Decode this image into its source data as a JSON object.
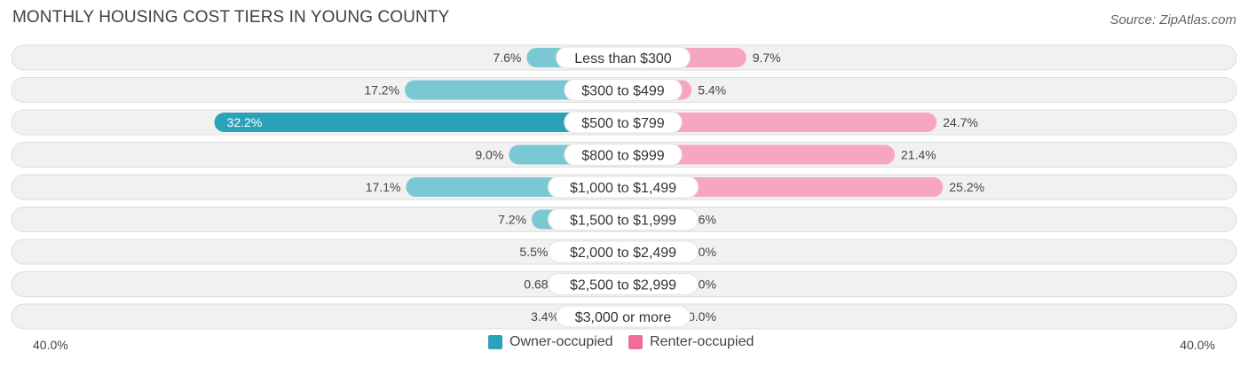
{
  "title": "MONTHLY HOUSING COST TIERS IN YOUNG COUNTY",
  "source": "Source: ZipAtlas.com",
  "axis": {
    "left_label": "40.0%",
    "right_label": "40.0%"
  },
  "legend": {
    "owner_label": "Owner-occupied",
    "renter_label": "Renter-occupied"
  },
  "colors": {
    "owner_strong": "#2aa3b8",
    "owner_light": "#7ac8d4",
    "renter_strong": "#f06d96",
    "renter_light": "#f7a6c0",
    "row_bg": "#f1f1f1",
    "row_border": "#dedede"
  },
  "chart_data": {
    "type": "bar",
    "orientation": "diverging-horizontal",
    "categories": [
      "Less than $300",
      "$300 to $499",
      "$500 to $799",
      "$800 to $999",
      "$1,000 to $1,499",
      "$1,500 to $1,999",
      "$2,000 to $2,499",
      "$2,500 to $2,999",
      "$3,000 or more"
    ],
    "series": [
      {
        "name": "Owner-occupied",
        "side": "left",
        "values": [
          7.6,
          17.2,
          32.2,
          9.0,
          17.1,
          7.2,
          5.5,
          0.68,
          3.4
        ],
        "labels": [
          "7.6%",
          "17.2%",
          "32.2%",
          "9.0%",
          "17.1%",
          "7.2%",
          "5.5%",
          "0.68%",
          "3.4%"
        ]
      },
      {
        "name": "Renter-occupied",
        "side": "right",
        "values": [
          9.7,
          5.4,
          24.7,
          21.4,
          25.2,
          0.6,
          0.0,
          0.0,
          0.0
        ],
        "labels": [
          "9.7%",
          "5.4%",
          "24.7%",
          "21.4%",
          "25.2%",
          "0.6%",
          "0.0%",
          "0.0%",
          "0.0%"
        ]
      }
    ],
    "xlim": [
      -40,
      40
    ],
    "legend_position": "bottom-center"
  }
}
